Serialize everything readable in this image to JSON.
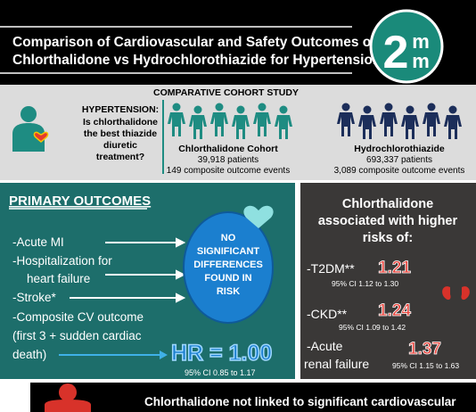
{
  "header": {
    "title": [
      "Comparison of Cardiovascular and Safety Outcomes of",
      "Chlorthalidone vs Hydrochlorothiazide for Hypertension"
    ],
    "logo": {
      "main": "2",
      "top": "m",
      "bottom": "m"
    }
  },
  "study": {
    "question": {
      "heading": "HYPERTENSION:",
      "lines": [
        "Is chlorthalidone",
        "the best thiazide",
        "diuretic",
        "treatment?"
      ]
    },
    "design": "COMPARATIVE COHORT STUDY",
    "cohorts": [
      {
        "name": "Chlorthalidone Cohort",
        "patients": "39,918 patients",
        "events": "149 composite outcome events"
      },
      {
        "name": "Hydrochlorothiazide",
        "patients": "693,337 patients",
        "events": "3,089 composite outcome events"
      }
    ]
  },
  "primary": {
    "heading": "PRIMARY OUTCOMES",
    "items": [
      [
        "-Acute MI"
      ],
      [
        "-Hospitalization for",
        "heart failure"
      ],
      [
        "-Stroke*"
      ],
      [
        "-Composite CV outcome",
        "(first 3 + sudden cardiac",
        "death)"
      ]
    ],
    "finding": [
      "NO",
      "SIGNIFICANT",
      "DIFFERENCES",
      "FOUND IN",
      "RISK"
    ],
    "hr": "HR = 1.00",
    "ci": "95% CI 0.85 to 1.17"
  },
  "safety": {
    "heading": [
      "Chlorthalidone",
      "associated with higher",
      "risks of:"
    ],
    "items": [
      {
        "label": [
          "-T2DM**"
        ],
        "hr": "1.21",
        "ci": "95% CI 1.12 to 1.30"
      },
      {
        "label": [
          "-CKD**"
        ],
        "hr": "1.24",
        "ci": "95% CI 1.09 to 1.42"
      },
      {
        "label": [
          "-Acute",
          "renal failure"
        ],
        "hr": "1.37",
        "ci": "95% CI 1.15 to 1.63"
      }
    ]
  },
  "footer": {
    "text": "Chlorthalidone not linked to significant cardiovascular"
  }
}
